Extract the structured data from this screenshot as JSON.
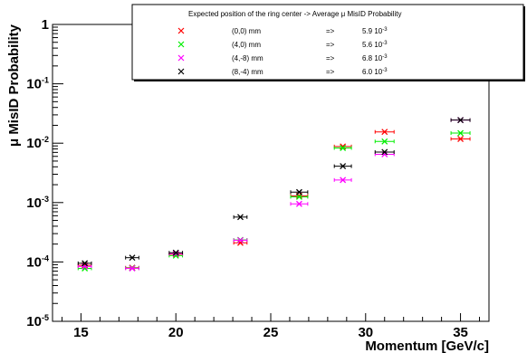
{
  "chart_data": {
    "type": "scatter",
    "xlabel": "Momentum [GeV/c]",
    "ylabel": "μ MisID Probability",
    "xlim": [
      13.5,
      36.5
    ],
    "ylim": [
      1e-05,
      1
    ],
    "yscale": "log",
    "grid": false,
    "x_ticks": [
      {
        "value": 15,
        "label": "15"
      },
      {
        "value": 20,
        "label": "20"
      },
      {
        "value": 25,
        "label": "25"
      },
      {
        "value": 30,
        "label": "30"
      },
      {
        "value": 35,
        "label": "35"
      }
    ],
    "y_ticks": [
      {
        "value": 1e-05,
        "base": "10",
        "exp": "-5",
        "label": ""
      },
      {
        "value": 0.0001,
        "base": "10",
        "exp": "-4",
        "label": ""
      },
      {
        "value": 0.001,
        "base": "10",
        "exp": "-3",
        "label": ""
      },
      {
        "value": 0.01,
        "base": "10",
        "exp": "-2",
        "label": ""
      },
      {
        "value": 0.1,
        "base": "10",
        "exp": "-1",
        "label": ""
      },
      {
        "value": 1,
        "base": "",
        "exp": "",
        "label": "1"
      }
    ],
    "legend": {
      "placement": "top-right",
      "title_left": "Expected position of the ring center",
      "title_arrow": "->",
      "title_right": "Average μ MisID Probability",
      "arrow_glyph": "=>"
    },
    "series": [
      {
        "name": "(0,0) mm",
        "color": "#ff0000",
        "avg_mantissa": "5.9",
        "avg_exp": "-3",
        "points": [
          {
            "x": 15.2,
            "y": 8.8e-05,
            "xerr": 0.35
          },
          {
            "x": 17.7,
            "y": 8e-05,
            "xerr": 0.35
          },
          {
            "x": 20.0,
            "y": 0.000135,
            "xerr": 0.35
          },
          {
            "x": 23.4,
            "y": 0.00021,
            "xerr": 0.35
          },
          {
            "x": 26.5,
            "y": 0.0013,
            "xerr": 0.45
          },
          {
            "x": 28.8,
            "y": 0.0088,
            "xerr": 0.45
          },
          {
            "x": 31.0,
            "y": 0.0155,
            "xerr": 0.5
          },
          {
            "x": 35.0,
            "y": 0.0118,
            "xerr": 0.5
          }
        ]
      },
      {
        "name": "(4,0) mm",
        "color": "#00ee00",
        "avg_mantissa": "5.6",
        "avg_exp": "-3",
        "points": [
          {
            "x": 15.2,
            "y": 7.8e-05,
            "xerr": 0.35
          },
          {
            "x": 17.7,
            "y": 7.9e-05,
            "xerr": 0.35
          },
          {
            "x": 20.0,
            "y": 0.000128,
            "xerr": 0.35
          },
          {
            "x": 23.4,
            "y": 0.000235,
            "xerr": 0.35
          },
          {
            "x": 26.5,
            "y": 0.00125,
            "xerr": 0.45
          },
          {
            "x": 28.8,
            "y": 0.0083,
            "xerr": 0.45
          },
          {
            "x": 31.0,
            "y": 0.0107,
            "xerr": 0.5
          },
          {
            "x": 35.0,
            "y": 0.0148,
            "xerr": 0.5
          }
        ]
      },
      {
        "name": "(4,-8) mm",
        "color": "#ff00ff",
        "avg_mantissa": "6.8",
        "avg_exp": "-3",
        "points": [
          {
            "x": 15.2,
            "y": 8.4e-05,
            "xerr": 0.35
          },
          {
            "x": 17.7,
            "y": 7.8e-05,
            "xerr": 0.35
          },
          {
            "x": 20.0,
            "y": 0.000138,
            "xerr": 0.35
          },
          {
            "x": 23.4,
            "y": 0.000232,
            "xerr": 0.35
          },
          {
            "x": 26.5,
            "y": 0.00095,
            "xerr": 0.45
          },
          {
            "x": 28.8,
            "y": 0.0024,
            "xerr": 0.45
          },
          {
            "x": 31.0,
            "y": 0.0065,
            "xerr": 0.5
          },
          {
            "x": 35.0,
            "y": 0.0245,
            "xerr": 0.5
          }
        ]
      },
      {
        "name": "(8,-4) mm",
        "color": "#000000",
        "avg_mantissa": "6.0",
        "avg_exp": "-3",
        "points": [
          {
            "x": 15.2,
            "y": 9.5e-05,
            "xerr": 0.35
          },
          {
            "x": 17.7,
            "y": 0.000118,
            "xerr": 0.35
          },
          {
            "x": 20.0,
            "y": 0.000143,
            "xerr": 0.35
          },
          {
            "x": 23.4,
            "y": 0.00057,
            "xerr": 0.35
          },
          {
            "x": 26.5,
            "y": 0.0015,
            "xerr": 0.45
          },
          {
            "x": 28.8,
            "y": 0.0041,
            "xerr": 0.45
          },
          {
            "x": 31.0,
            "y": 0.0071,
            "xerr": 0.5
          },
          {
            "x": 35.0,
            "y": 0.0245,
            "xerr": 0.5
          }
        ]
      }
    ]
  }
}
